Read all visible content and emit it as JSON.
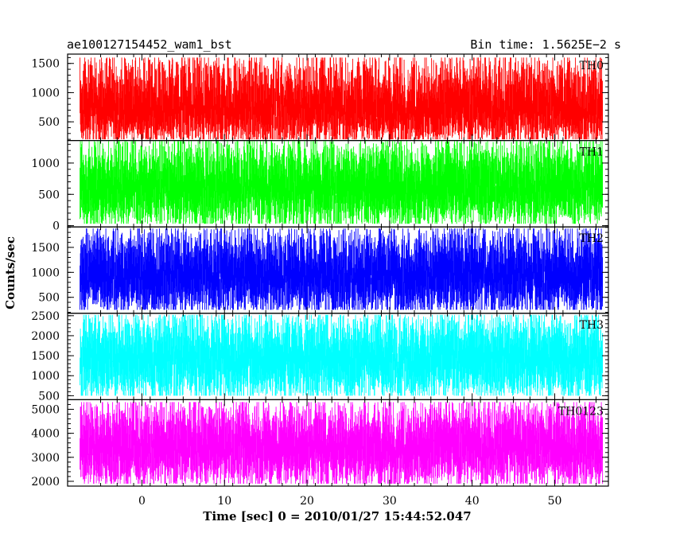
{
  "chart_data": {
    "type": "line",
    "title_left": "ae100127154452_wam1_bst",
    "title_right": "Bin time: 1.5625E−2 s",
    "xlabel": "Time [sec] 0 = 2010/01/27 15:44:52.047",
    "ylabel": "Counts/sec",
    "xlim": [
      -9,
      56.5
    ],
    "xticks": [
      0,
      10,
      20,
      30,
      40,
      50
    ],
    "bin_time": 0.015625,
    "data_x_range": [
      -7.5,
      55.8
    ],
    "panels": [
      {
        "name": "TH0",
        "color": "#ff0000",
        "ylim": [
          180,
          1660
        ],
        "yticks": [
          500,
          1000,
          1500
        ],
        "mean": 640,
        "low": 200,
        "high": 1600
      },
      {
        "name": "TH1",
        "color": "#00ff00",
        "ylim": [
          -20,
          1360
        ],
        "yticks": [
          0,
          500,
          1000
        ],
        "mean": 600,
        "low": 30,
        "high": 1350
      },
      {
        "name": "TH2",
        "color": "#0000ff",
        "ylim": [
          180,
          1910
        ],
        "yticks": [
          500,
          1000,
          1500
        ],
        "mean": 900,
        "low": 250,
        "high": 1880
      },
      {
        "name": "TH3",
        "color": "#00ffff",
        "ylim": [
          400,
          2560
        ],
        "yticks": [
          500,
          1000,
          1500,
          2000,
          2500
        ],
        "mean": 1450,
        "low": 500,
        "high": 2520
      },
      {
        "name": "TH0123",
        "color": "#ff00ff",
        "ylim": [
          1800,
          5400
        ],
        "yticks": [
          2000,
          3000,
          4000,
          5000
        ],
        "mean": 3400,
        "low": 1900,
        "high": 5300
      }
    ]
  }
}
